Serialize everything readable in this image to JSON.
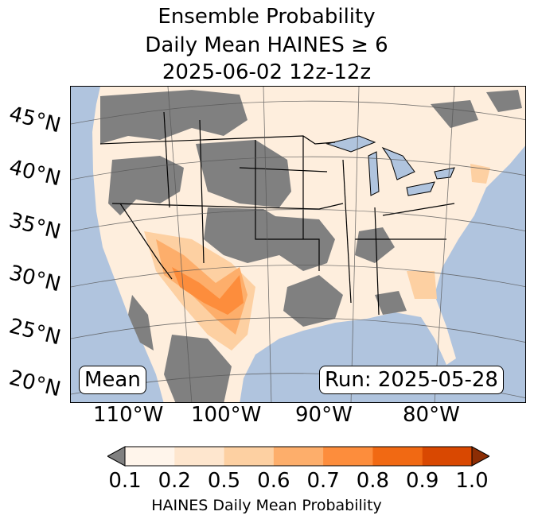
{
  "title": [
    "Ensemble Probability",
    "Daily Mean HAINES ≥ 6",
    "2025-06-02 12z-12z"
  ],
  "lat_labels": [
    "45°N",
    "40°N",
    "35°N",
    "30°N",
    "25°N",
    "20°N"
  ],
  "lon_labels": [
    "110°W",
    "100°W",
    "90°W",
    "80°W"
  ],
  "mean_label": "Mean",
  "run_label": "Run: 2025-05-28",
  "colorbar": {
    "label": "HAINES Daily Mean Probability",
    "ticks": [
      "0.1",
      "0.2",
      "0.5",
      "0.6",
      "0.7",
      "0.8",
      "0.9",
      "1.0"
    ],
    "under_color": "#808080",
    "colors": [
      "#fff5eb",
      "#fee6ce",
      "#fdd0a2",
      "#fdae6b",
      "#fd8d3c",
      "#f16913",
      "#d94801"
    ],
    "over_color": "#8c2d04"
  },
  "colors": {
    "ocean": "#b0c4de",
    "land_low": "#fff5eb",
    "no_data": "#808080"
  }
}
